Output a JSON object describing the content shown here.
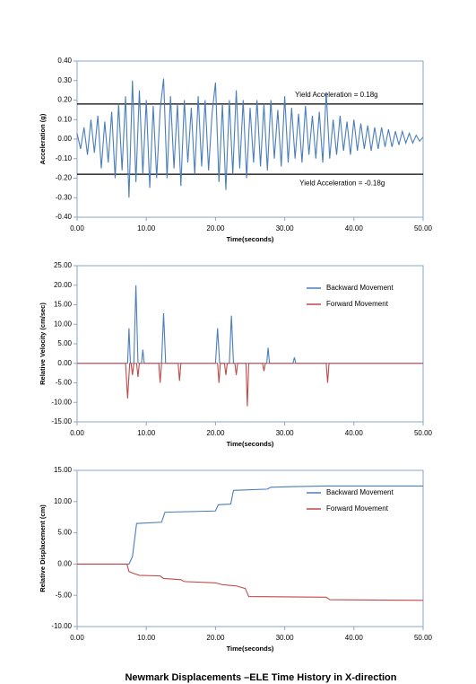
{
  "chart_data": [
    {
      "type": "line",
      "ylabel": "Acceleration (g)",
      "xlabel": "Time(seconds)",
      "xlim": [
        0,
        50
      ],
      "ylim": [
        -0.4,
        0.4
      ],
      "xticks": [
        {
          "value": 0,
          "label": "0.00"
        },
        {
          "value": 10,
          "label": "10.00"
        },
        {
          "value": 20,
          "label": "20.00"
        },
        {
          "value": 30,
          "label": "30.00"
        },
        {
          "value": 40,
          "label": "40.00"
        },
        {
          "value": 50,
          "label": "50.00"
        }
      ],
      "yticks": [
        {
          "value": 0.4,
          "label": "0.40"
        },
        {
          "value": 0.3,
          "label": "0.30"
        },
        {
          "value": 0.2,
          "label": "0.20"
        },
        {
          "value": 0.1,
          "label": "0.10"
        },
        {
          "value": 0,
          "label": "0.00"
        },
        {
          "value": -0.1,
          "label": "-0.10"
        },
        {
          "value": -0.2,
          "label": "-0.20"
        },
        {
          "value": -0.3,
          "label": "-0.30"
        },
        {
          "value": -0.4,
          "label": "-0.40"
        }
      ],
      "annotations": [
        {
          "text": "Yield Acceleration = 0.18g",
          "value": 0.18
        },
        {
          "text": "Yield Acceleration = -0.18g",
          "value": -0.18
        }
      ],
      "series": [
        {
          "color": "#4a7ebb",
          "x": [
            0,
            0.5,
            1,
            1.5,
            2,
            2.5,
            3,
            3.5,
            4,
            4.5,
            5,
            5.5,
            6,
            6.5,
            7,
            7.5,
            8,
            8.5,
            9,
            9.5,
            10,
            10.5,
            11,
            11.5,
            12,
            12.5,
            13,
            13.5,
            14,
            14.5,
            15,
            15.5,
            16,
            16.5,
            17,
            17.5,
            18,
            18.5,
            19,
            19.5,
            20,
            20.5,
            21,
            21.5,
            22,
            22.5,
            23,
            23.5,
            24,
            24.5,
            25,
            25.5,
            26,
            26.5,
            27,
            27.5,
            28,
            28.5,
            29,
            29.5,
            30,
            30.5,
            31,
            31.5,
            32,
            32.5,
            33,
            33.5,
            34,
            34.5,
            35,
            35.5,
            36,
            36.5,
            37,
            37.5,
            38,
            38.5,
            39,
            39.5,
            40,
            40.5,
            41,
            41.5,
            42,
            42.5,
            43,
            43.5,
            44,
            44.5,
            45,
            45.5,
            46,
            46.5,
            47,
            47.5,
            48,
            48.5,
            49,
            49.5,
            50
          ],
          "values": [
            0.03,
            -0.05,
            0.06,
            -0.08,
            0.1,
            -0.07,
            0.12,
            -0.15,
            0.09,
            -0.12,
            0.14,
            -0.2,
            0.18,
            -0.16,
            0.22,
            -0.3,
            0.3,
            -0.22,
            0.25,
            -0.18,
            0.2,
            -0.25,
            0.17,
            -0.2,
            0.15,
            0.31,
            -0.2,
            0.22,
            -0.15,
            0.18,
            -0.24,
            0.2,
            -0.12,
            0.16,
            -0.18,
            0.22,
            -0.14,
            0.2,
            -0.16,
            0.13,
            0.29,
            -0.22,
            0.18,
            -0.26,
            0.2,
            -0.18,
            0.25,
            -0.15,
            0.2,
            -0.2,
            0.16,
            -0.12,
            0.2,
            -0.14,
            0.18,
            -0.16,
            0.2,
            -0.1,
            0.15,
            -0.14,
            0.22,
            -0.12,
            0.16,
            -0.1,
            0.13,
            -0.12,
            0.17,
            -0.08,
            0.12,
            -0.1,
            0.14,
            -0.12,
            0.24,
            -0.1,
            0.1,
            -0.08,
            0.12,
            -0.06,
            0.09,
            -0.08,
            0.1,
            -0.06,
            0.08,
            -0.05,
            0.07,
            -0.06,
            0.06,
            -0.05,
            0.06,
            -0.04,
            0.05,
            -0.04,
            0.04,
            -0.03,
            0.04,
            -0.02,
            0.03,
            -0.02,
            0.02,
            -0.01,
            0.01
          ]
        }
      ]
    },
    {
      "type": "line",
      "ylabel": "Relative Velocity (cm/sec)",
      "xlabel": "Time(seconds)",
      "xlim": [
        0,
        50
      ],
      "ylim": [
        -15,
        25
      ],
      "xticks": [
        {
          "value": 0,
          "label": "0.00"
        },
        {
          "value": 10,
          "label": "10.00"
        },
        {
          "value": 20,
          "label": "20.00"
        },
        {
          "value": 30,
          "label": "30.00"
        },
        {
          "value": 40,
          "label": "40.00"
        },
        {
          "value": 50,
          "label": "50.00"
        }
      ],
      "yticks": [
        {
          "value": 25,
          "label": "25.00"
        },
        {
          "value": 20,
          "label": "20.00"
        },
        {
          "value": 15,
          "label": "15.00"
        },
        {
          "value": 10,
          "label": "10.00"
        },
        {
          "value": 5,
          "label": "5.00"
        },
        {
          "value": 0,
          "label": "0.00"
        },
        {
          "value": -5,
          "label": "-5.00"
        },
        {
          "value": -10,
          "label": "-10.00"
        },
        {
          "value": -15,
          "label": "-15.00"
        }
      ],
      "series": [
        {
          "name": "Backward Movement",
          "color": "#4a7ebb",
          "x": [
            0,
            7.3,
            7.5,
            7.7,
            8.2,
            8.5,
            8.8,
            9.3,
            9.5,
            9.7,
            12.2,
            12.5,
            12.8,
            20,
            20.3,
            20.6,
            22,
            22.3,
            22.6,
            27.4,
            27.6,
            27.8,
            31.2,
            31.4,
            31.6,
            50
          ],
          "values": [
            0,
            0,
            9,
            0,
            0,
            20,
            0,
            0,
            3.5,
            0,
            0,
            12.8,
            0,
            0,
            9,
            0,
            0,
            12.2,
            0,
            0,
            4,
            0,
            0,
            1.5,
            0,
            0
          ]
        },
        {
          "name": "Forward Movement",
          "color": "#be4b48",
          "x": [
            0,
            7,
            7.3,
            7.6,
            7.8,
            8,
            8.2,
            8.6,
            8.8,
            9,
            11.8,
            12,
            12.2,
            14.6,
            14.8,
            15,
            20.3,
            20.5,
            20.7,
            21.3,
            21.5,
            21.7,
            22.8,
            23,
            23.2,
            24.4,
            24.6,
            24.8,
            26.8,
            27,
            27.2,
            36,
            36.2,
            36.4,
            50
          ],
          "values": [
            0,
            0,
            -9,
            0,
            0,
            -3,
            0,
            0,
            -3.5,
            0,
            0,
            -5,
            0,
            0,
            -4.5,
            0,
            0,
            -5,
            0,
            0,
            -3,
            0,
            0,
            -3,
            0,
            0,
            -11,
            0,
            0,
            -2,
            0,
            0,
            -5,
            0,
            0
          ]
        }
      ],
      "legend": "upper right"
    },
    {
      "type": "line",
      "ylabel": "Relative Displacement (cm)",
      "xlabel": "Time(seconds)",
      "xlim": [
        0,
        50
      ],
      "ylim": [
        -10,
        15
      ],
      "xticks": [
        {
          "value": 0,
          "label": "0.00"
        },
        {
          "value": 10,
          "label": "10.00"
        },
        {
          "value": 20,
          "label": "20.00"
        },
        {
          "value": 30,
          "label": "30.00"
        },
        {
          "value": 40,
          "label": "40.00"
        },
        {
          "value": 50,
          "label": "50.00"
        }
      ],
      "yticks": [
        {
          "value": 15,
          "label": "15.00"
        },
        {
          "value": 10,
          "label": "10.00"
        },
        {
          "value": 5,
          "label": "5.00"
        },
        {
          "value": 0,
          "label": "0.00"
        },
        {
          "value": -5,
          "label": "-5.00"
        },
        {
          "value": -10,
          "label": "-10.00"
        }
      ],
      "series": [
        {
          "name": "Backward Movement",
          "color": "#4a7ebb",
          "x": [
            0,
            7.5,
            8,
            8.6,
            12.2,
            12.7,
            20,
            20.4,
            22.2,
            22.6,
            27.5,
            28,
            31.5,
            36,
            50
          ],
          "values": [
            0,
            0,
            1.2,
            6.5,
            6.7,
            8.3,
            8.5,
            9.5,
            9.6,
            11.8,
            12,
            12.3,
            12.4,
            12.5,
            12.5
          ]
        },
        {
          "name": "Forward Movement",
          "color": "#be4b48",
          "x": [
            0,
            7.2,
            7.5,
            8.2,
            9,
            12,
            12.5,
            15,
            15.5,
            20,
            21,
            23,
            24.3,
            24.8,
            36,
            36.5,
            50
          ],
          "values": [
            0,
            0,
            -1.2,
            -1.5,
            -1.8,
            -1.9,
            -2.3,
            -2.5,
            -2.8,
            -3,
            -3.3,
            -3.5,
            -3.9,
            -5.2,
            -5.3,
            -5.7,
            -5.8
          ]
        }
      ],
      "legend": "upper right"
    }
  ],
  "caption": "Newmark Displacements –ELE Time History in X-direction"
}
